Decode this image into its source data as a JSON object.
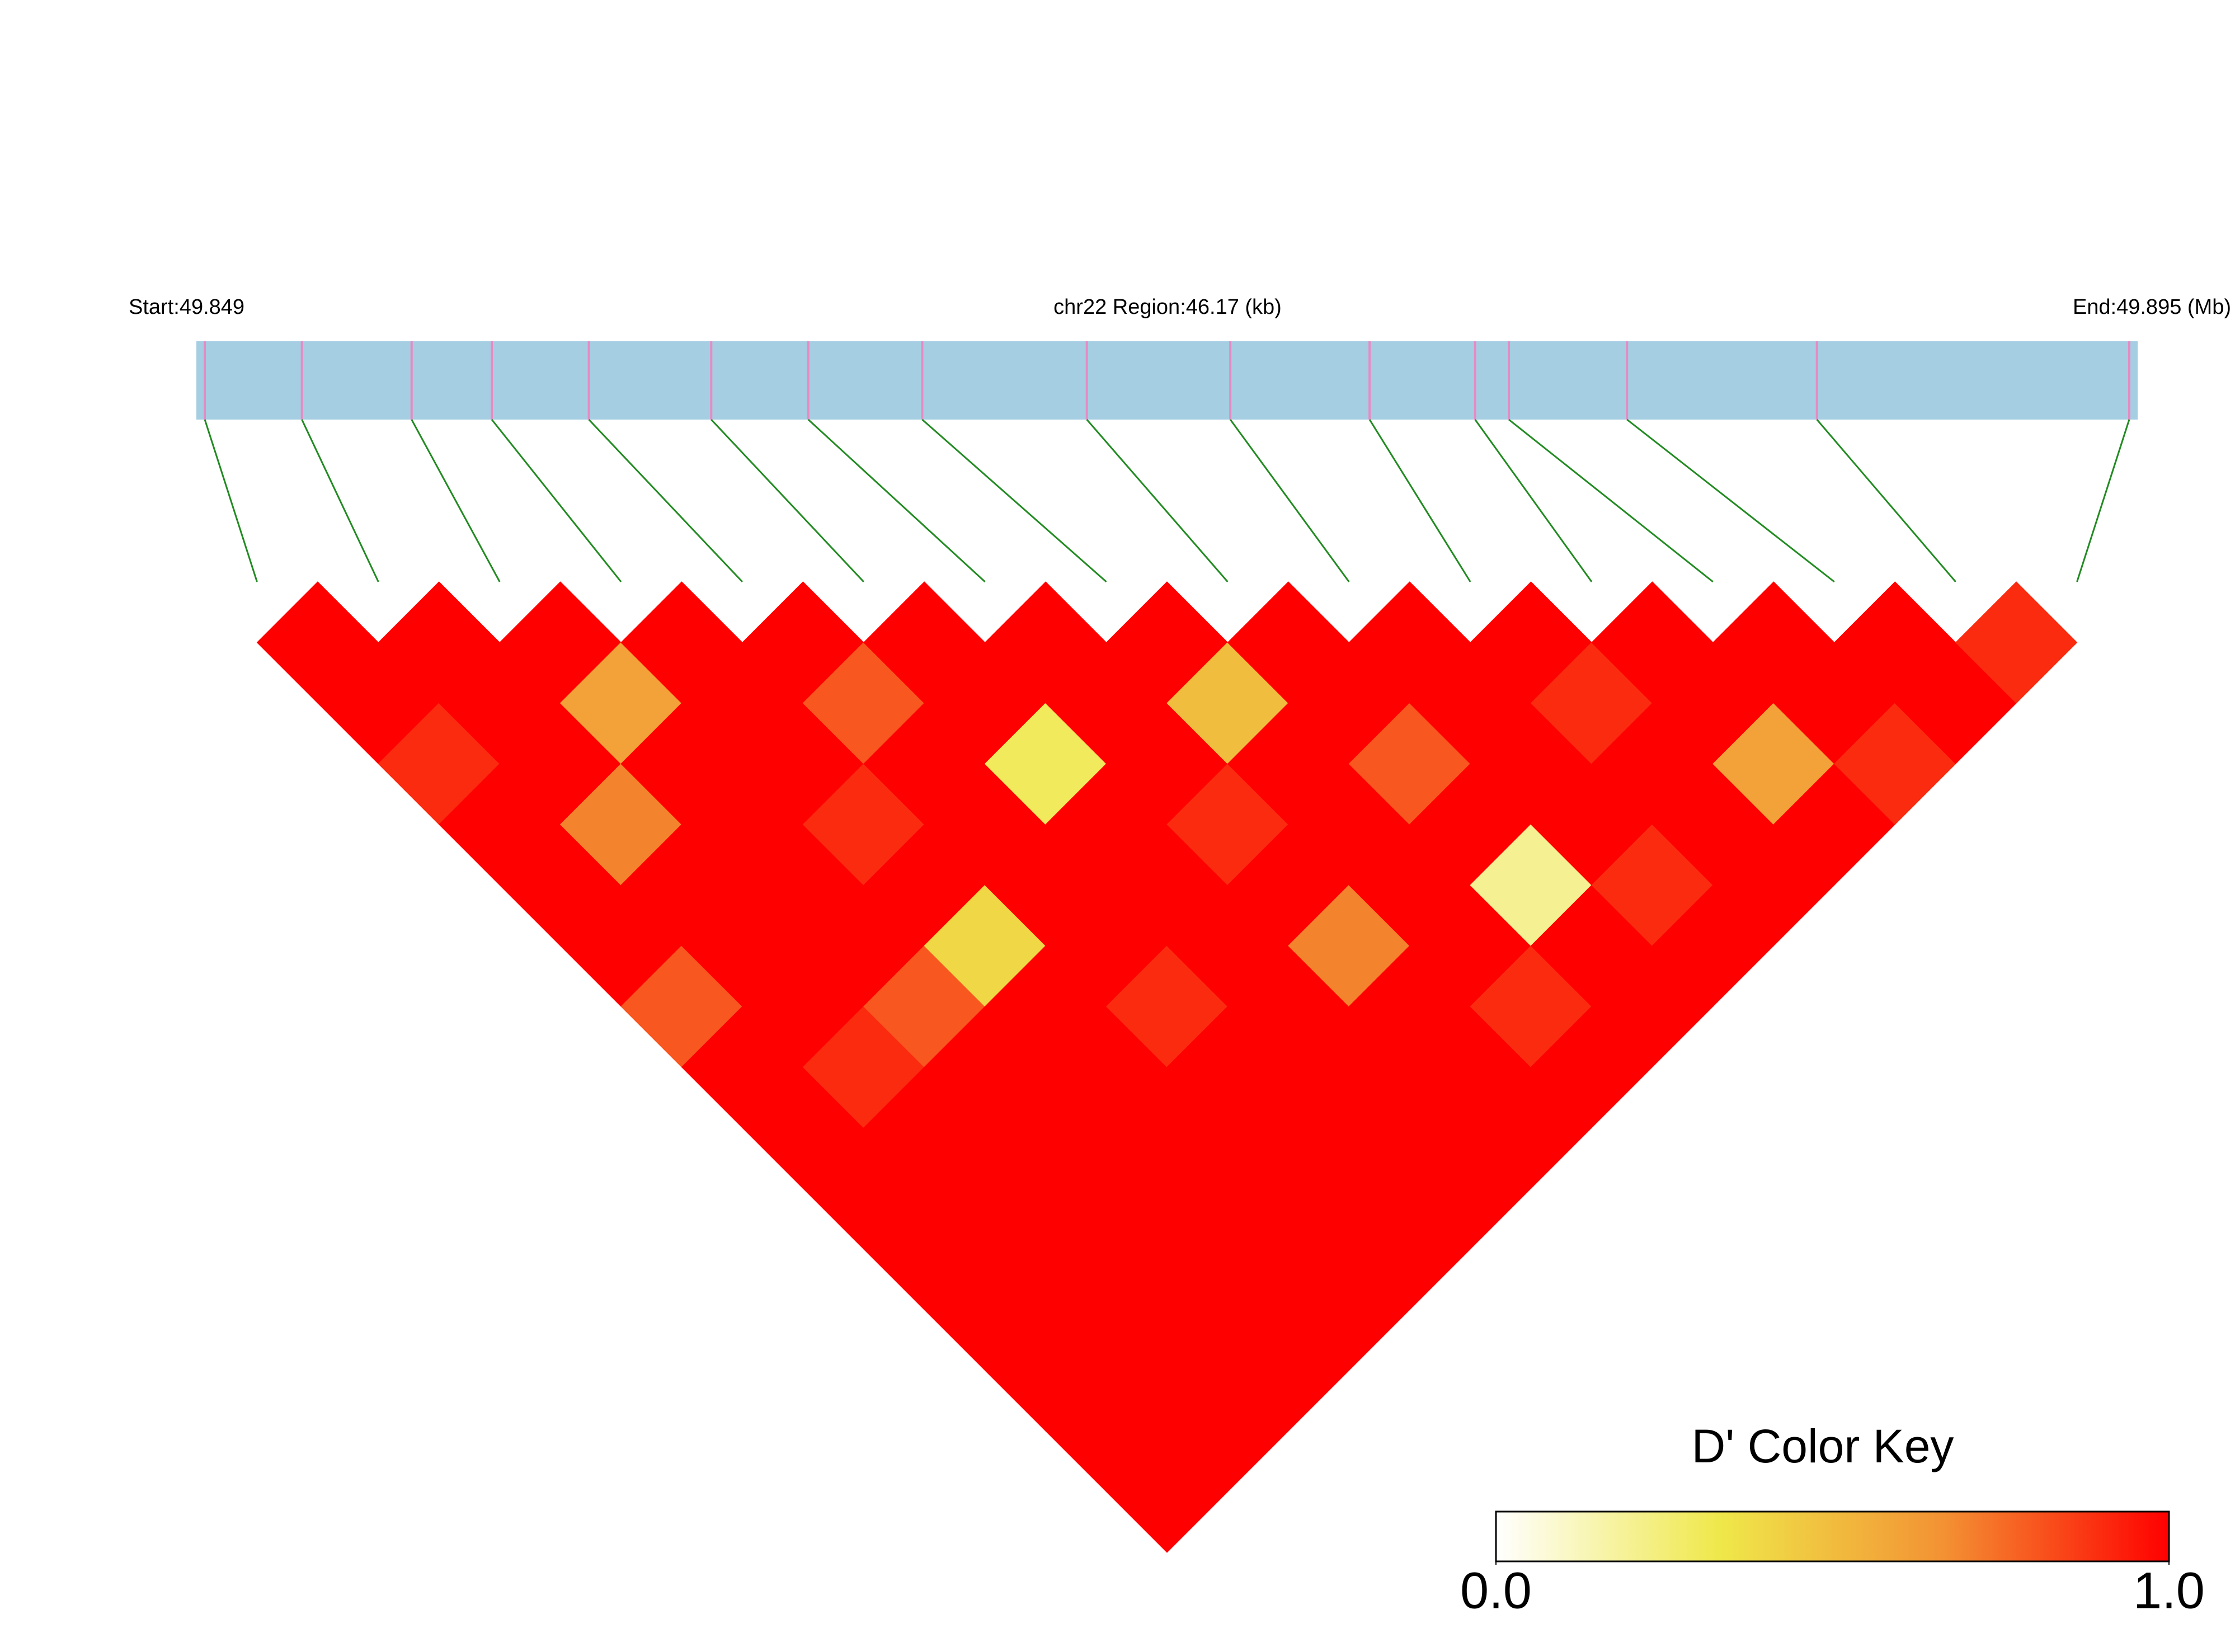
{
  "chart_data": {
    "type": "ld_heatmap",
    "start_label": "Start:49.849",
    "title": "chr22 Region:46.17 (kb)",
    "end_label": "End:49.895 (Mb)",
    "xlim": [
      49.849,
      49.895
    ],
    "snp_positions": [
      49.8492,
      49.8515,
      49.8541,
      49.856,
      49.8583,
      49.8612,
      49.8635,
      49.8662,
      49.8701,
      49.8735,
      49.8768,
      49.8793,
      49.8801,
      49.8829,
      49.8874,
      49.8948
    ],
    "values": [
      [
        1,
        1,
        0.9,
        1,
        1,
        1,
        0.8,
        1,
        1,
        1,
        1,
        1,
        1,
        1,
        1
      ],
      [
        1,
        1,
        1,
        0.7,
        1,
        1,
        1,
        0.9,
        1,
        1,
        1,
        1,
        1,
        1
      ],
      [
        1,
        0.6,
        1,
        1,
        1,
        1,
        0.8,
        1,
        1,
        1,
        1,
        1,
        1
      ],
      [
        1,
        1,
        1,
        0.9,
        1,
        0.4,
        1,
        1,
        1,
        1,
        1,
        1
      ],
      [
        1,
        0.8,
        1,
        1,
        1,
        1,
        0.9,
        1,
        1,
        1,
        1
      ],
      [
        1,
        1,
        0.3,
        1,
        1,
        1,
        1,
        1,
        1,
        1
      ],
      [
        1,
        1,
        1,
        0.9,
        1,
        0.7,
        1,
        1,
        1
      ],
      [
        1,
        0.5,
        1,
        1,
        1,
        1,
        0.9,
        1
      ],
      [
        1,
        1,
        0.8,
        1,
        0.2,
        1,
        1
      ],
      [
        1,
        1,
        1,
        1,
        0.9,
        1
      ],
      [
        1,
        0.9,
        1,
        1,
        1
      ],
      [
        1,
        1,
        0.6,
        1
      ],
      [
        1,
        1,
        0.9
      ],
      [
        1,
        1
      ],
      [
        0.9
      ]
    ],
    "colorscale": [
      "#ffffff",
      "#efe84a",
      "#f39133",
      "#ff0000"
    ],
    "key_title": "D' Color Key",
    "key_lim": [
      0,
      1
    ],
    "key_ticks": [
      {
        "value": 0,
        "label": "0.0"
      },
      {
        "value": 1,
        "label": "1.0"
      }
    ],
    "bar_color": "#a6cee3",
    "snp_color": "#e78ac3",
    "link_color": "#228b22"
  }
}
